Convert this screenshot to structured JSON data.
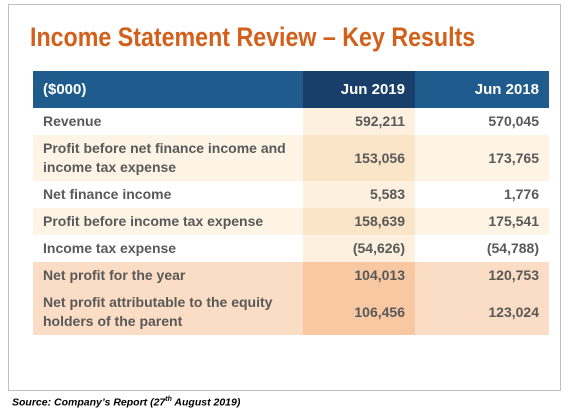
{
  "header": {
    "title": "Income Statement Review – Key Results"
  },
  "table": {
    "columns": [
      "($000)",
      "Jun 2019",
      "Jun 2018"
    ],
    "rows": [
      [
        "Revenue",
        "592,211",
        "570,045"
      ],
      [
        "Profit before net finance income and income tax expense",
        "153,056",
        "173,765"
      ],
      [
        "Net finance income",
        "5,583",
        "1,776"
      ],
      [
        "Profit before income tax expense",
        "158,639",
        "175,541"
      ],
      [
        "Income tax expense",
        "(54,626)",
        "(54,788)"
      ],
      [
        "Net profit for the year",
        "104,013",
        "120,753"
      ],
      [
        "Net profit attributable to the equity holders of the parent",
        "106,456",
        "123,024"
      ]
    ]
  },
  "footer": {
    "source": {
      "before": "Source: Company’s Report (27",
      "superscript": "th",
      "after": " August 2019)"
    }
  }
}
